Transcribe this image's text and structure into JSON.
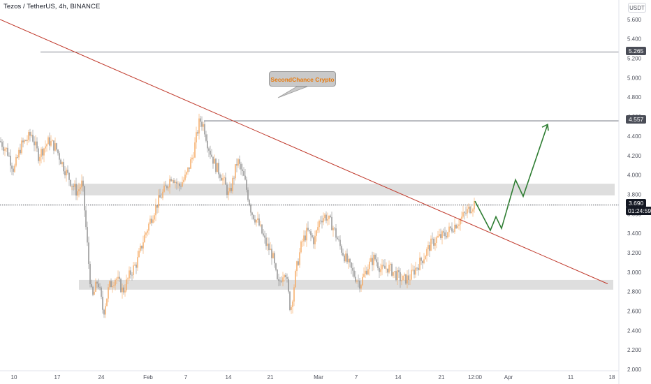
{
  "header": {
    "title": "Tezos / TetherUS, 4h, BINANCE",
    "currency": "USDT"
  },
  "annotation": {
    "label": "SecondChance Crypto"
  },
  "price_labels": {
    "upper_resistance": "5.265",
    "target": "4.557",
    "current": "3.690",
    "countdown": "01:24:59"
  },
  "colors": {
    "up_candle": "#f5a55a",
    "down_candle": "#8a8a8a",
    "trendline": "#c0392b",
    "projection": "#2e7d32",
    "zone": "#dedede",
    "callout_text": "#e8790a"
  },
  "chart_data": {
    "type": "line",
    "title": "Tezos / TetherUS, 4h, BINANCE",
    "xlabel": "",
    "ylabel": "",
    "ylim": [
      2.0,
      5.75
    ],
    "y_ticks": [
      "2.000",
      "2.200",
      "2.400",
      "2.600",
      "2.800",
      "3.000",
      "3.200",
      "3.400",
      "3.600",
      "3.800",
      "4.000",
      "4.200",
      "4.400",
      "4.600",
      "4.800",
      "5.000",
      "5.200",
      "5.400",
      "5.600"
    ],
    "x_ticks": [
      "10",
      "17",
      "24",
      "Feb",
      "7",
      "14",
      "21",
      "Mar",
      "7",
      "14",
      "21",
      "12:00",
      "Apr",
      "11",
      "18"
    ],
    "series": [
      {
        "values": [
          [
            0,
            4.35
          ],
          [
            10,
            4.25
          ],
          [
            20,
            4.05
          ],
          [
            30,
            4.3
          ],
          [
            45,
            4.42
          ],
          [
            55,
            4.2
          ],
          [
            70,
            4.35
          ],
          [
            80,
            4.28
          ],
          [
            90,
            4.1
          ],
          [
            100,
            3.95
          ],
          [
            110,
            3.82
          ],
          [
            118,
            3.92
          ],
          [
            122,
            3.55
          ],
          [
            128,
            3.0
          ],
          [
            132,
            2.72
          ],
          [
            140,
            2.92
          ],
          [
            148,
            2.58
          ],
          [
            156,
            2.85
          ],
          [
            166,
            2.95
          ],
          [
            176,
            2.8
          ],
          [
            186,
            2.98
          ],
          [
            196,
            3.1
          ],
          [
            206,
            3.35
          ],
          [
            216,
            3.55
          ],
          [
            226,
            3.72
          ],
          [
            236,
            3.85
          ],
          [
            246,
            4.0
          ],
          [
            256,
            3.88
          ],
          [
            266,
            3.98
          ],
          [
            276,
            4.2
          ],
          [
            286,
            4.57
          ],
          [
            292,
            4.5
          ],
          [
            298,
            4.3
          ],
          [
            308,
            4.1
          ],
          [
            318,
            3.98
          ],
          [
            328,
            3.78
          ],
          [
            340,
            4.15
          ],
          [
            350,
            3.95
          ],
          [
            360,
            3.62
          ],
          [
            370,
            3.5
          ],
          [
            380,
            3.3
          ],
          [
            390,
            3.18
          ],
          [
            398,
            2.85
          ],
          [
            408,
            3.05
          ],
          [
            416,
            2.6
          ],
          [
            424,
            3.02
          ],
          [
            432,
            3.3
          ],
          [
            440,
            3.42
          ],
          [
            450,
            3.32
          ],
          [
            458,
            3.55
          ],
          [
            466,
            3.58
          ],
          [
            476,
            3.48
          ],
          [
            486,
            3.28
          ],
          [
            496,
            3.12
          ],
          [
            506,
            2.98
          ],
          [
            516,
            2.88
          ],
          [
            526,
            3.05
          ],
          [
            536,
            3.15
          ],
          [
            546,
            3.02
          ],
          [
            556,
            3.05
          ],
          [
            566,
            2.98
          ],
          [
            576,
            2.92
          ],
          [
            586,
            2.94
          ],
          [
            596,
            3.05
          ],
          [
            606,
            3.15
          ],
          [
            616,
            3.28
          ],
          [
            626,
            3.35
          ],
          [
            636,
            3.38
          ],
          [
            646,
            3.45
          ],
          [
            656,
            3.52
          ],
          [
            666,
            3.6
          ],
          [
            680,
            3.72
          ]
        ]
      },
      {
        "values": [
          [
            680,
            3.73
          ],
          [
            702,
            3.43
          ],
          [
            710,
            3.57
          ],
          [
            718,
            3.45
          ],
          [
            738,
            3.95
          ],
          [
            749,
            3.78
          ],
          [
            784,
            4.52
          ]
        ]
      }
    ],
    "horizontal_lines": [
      5.265,
      4.557
    ],
    "zones": [
      [
        3.79,
        3.91
      ],
      [
        2.82,
        2.92
      ]
    ],
    "trendline": [
      [
        0,
        5.6
      ],
      [
        870,
        2.88
      ]
    ],
    "current_price": 3.69,
    "grid": false,
    "legend": "none"
  }
}
